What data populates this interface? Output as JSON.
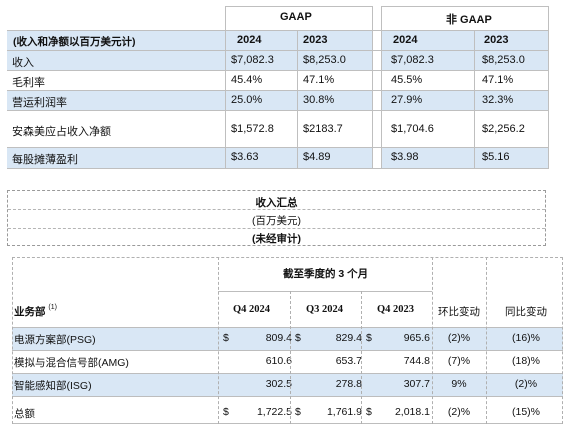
{
  "top_table": {
    "gaap_header": "GAAP",
    "non_gaap_header": "非 GAAP",
    "row_header": "(收入和净额以百万美元计)",
    "years": [
      "2024",
      "2023"
    ],
    "rows": [
      {
        "label": "收入",
        "gaap_2024": "$7,082.3",
        "gaap_2023": "$8,253.0",
        "non_2024": "$7,082.3",
        "non_2023": "$8,253.0"
      },
      {
        "label": "毛利率",
        "gaap_2024": "45.4%",
        "gaap_2023": "47.1%",
        "non_2024": "45.5%",
        "non_2023": "47.1%"
      },
      {
        "label": "营运利润率",
        "gaap_2024": "25.0%",
        "gaap_2023": "30.8%",
        "non_2024": "27.9%",
        "non_2023": "32.3%"
      },
      {
        "label": "安森美应占收入净额",
        "gaap_2024": "$1,572.8",
        "gaap_2023": "$2183.7",
        "non_2024": "$1,704.6",
        "non_2023": "$2,256.2"
      },
      {
        "label": "每股摊薄盈利",
        "gaap_2024": "$3.63",
        "gaap_2023": "$4.89",
        "non_2024": "$3.98",
        "non_2023": "$5.16"
      }
    ]
  },
  "summary": {
    "title": "收入汇总",
    "unit": "(百万美元)",
    "note": "(未经审计)"
  },
  "segment_table": {
    "period_header": "截至季度的 3 个月",
    "col_segment": "业务部",
    "col_segment_note": "(1)",
    "quarters": [
      "Q4 2024",
      "Q3 2024",
      "Q4 2023"
    ],
    "col_qoq": "环比变动",
    "col_yoy": "同比变动",
    "currency": "$",
    "rows": [
      {
        "label": "电源方案部(PSG)",
        "dollar": true,
        "q4_2024": "809.4",
        "q3_2024": "829.4",
        "q4_2023": "965.6",
        "qoq": "(2)%",
        "yoy": "(16)%"
      },
      {
        "label": "模拟与混合信号部(AMG)",
        "dollar": false,
        "q4_2024": "610.6",
        "q3_2024": "653.7",
        "q4_2023": "744.8",
        "qoq": "(7)%",
        "yoy": "(18)%"
      },
      {
        "label": "智能感知部(ISG)",
        "dollar": false,
        "q4_2024": "302.5",
        "q3_2024": "278.8",
        "q4_2023": "307.7",
        "qoq": "9%",
        "yoy": "(2)%"
      },
      {
        "label": "总额",
        "dollar": true,
        "q4_2024": "1,722.5",
        "q3_2024": "1,761.9",
        "q4_2023": "2,018.1",
        "qoq": "(2)%",
        "yoy": "(15)%"
      }
    ]
  }
}
